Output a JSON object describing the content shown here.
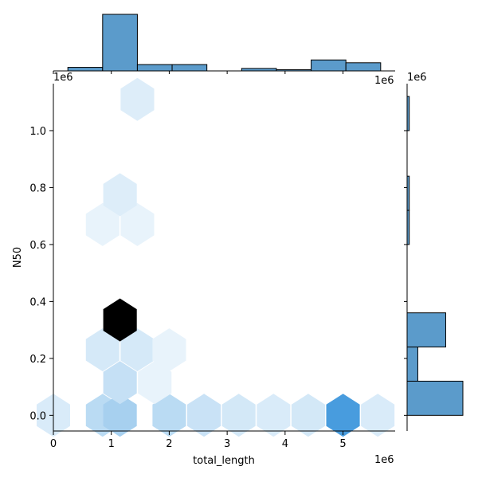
{
  "chart_data": {
    "type": "heatmap",
    "subtype": "jointplot-hexbin",
    "xlabel": "total_length",
    "ylabel": "N50",
    "x_exponent_label": "1e6",
    "y_exponent_label": "1e6",
    "marginal_x_exponent_label": "1e6",
    "marginal_y_exponent_label": "1e6",
    "xlim": [
      0,
      5.9
    ],
    "ylim": [
      -0.055,
      1.165
    ],
    "x_ticks": [
      {
        "value": 0,
        "label": "0"
      },
      {
        "value": 1,
        "label": "1"
      },
      {
        "value": 2,
        "label": "2"
      },
      {
        "value": 3,
        "label": "3"
      },
      {
        "value": 4,
        "label": "4"
      },
      {
        "value": 5,
        "label": "5"
      }
    ],
    "y_ticks": [
      {
        "value": 0.0,
        "label": "0.0"
      },
      {
        "value": 0.2,
        "label": "0.2"
      },
      {
        "value": 0.4,
        "label": "0.4"
      },
      {
        "value": 0.6,
        "label": "0.6"
      },
      {
        "value": 0.8,
        "label": "0.8"
      },
      {
        "value": 1.0,
        "label": "1.0"
      }
    ],
    "hexbins": [
      {
        "x": 0.0,
        "y": 0.0,
        "level": 0.12
      },
      {
        "x": 0.85,
        "y": 0.0,
        "level": 0.27
      },
      {
        "x": 1.15,
        "y": 0.0,
        "level": 0.36
      },
      {
        "x": 2.0,
        "y": 0.0,
        "level": 0.27
      },
      {
        "x": 2.6,
        "y": 0.0,
        "level": 0.2
      },
      {
        "x": 3.2,
        "y": 0.0,
        "level": 0.15
      },
      {
        "x": 3.8,
        "y": 0.0,
        "level": 0.12
      },
      {
        "x": 4.4,
        "y": 0.0,
        "level": 0.15
      },
      {
        "x": 5.0,
        "y": 0.0,
        "level": 0.7
      },
      {
        "x": 5.6,
        "y": 0.0,
        "level": 0.12
      },
      {
        "x": 1.15,
        "y": 0.115,
        "level": 0.22
      },
      {
        "x": 1.75,
        "y": 0.115,
        "level": 0.05
      },
      {
        "x": 0.85,
        "y": 0.23,
        "level": 0.14
      },
      {
        "x": 1.45,
        "y": 0.23,
        "level": 0.14
      },
      {
        "x": 2.0,
        "y": 0.23,
        "level": 0.05
      },
      {
        "x": 1.15,
        "y": 0.335,
        "level": 1.0
      },
      {
        "x": 0.85,
        "y": 0.67,
        "level": 0.05
      },
      {
        "x": 1.45,
        "y": 0.67,
        "level": 0.05
      },
      {
        "x": 1.15,
        "y": 0.775,
        "level": 0.1
      },
      {
        "x": 1.45,
        "y": 1.11,
        "level": 0.1
      }
    ],
    "marginal_x_bins": [
      {
        "x0": 0.25,
        "x1": 0.85,
        "count": 1
      },
      {
        "x0": 0.85,
        "x1": 1.45,
        "count": 16
      },
      {
        "x0": 1.45,
        "x1": 2.05,
        "count": 1.8
      },
      {
        "x0": 2.05,
        "x1": 2.65,
        "count": 1.8
      },
      {
        "x0": 2.65,
        "x1": 3.25,
        "count": 0
      },
      {
        "x0": 3.25,
        "x1": 3.85,
        "count": 0.7
      },
      {
        "x0": 3.85,
        "x1": 4.45,
        "count": 0.35
      },
      {
        "x0": 4.45,
        "x1": 5.05,
        "count": 3.1
      },
      {
        "x0": 5.05,
        "x1": 5.65,
        "count": 2.3
      }
    ],
    "marginal_y_bins": [
      {
        "y0": 0.0,
        "y1": 0.12,
        "count": 13
      },
      {
        "y0": 0.12,
        "y1": 0.24,
        "count": 2.5
      },
      {
        "y0": 0.24,
        "y1": 0.36,
        "count": 9
      },
      {
        "y0": 0.6,
        "y1": 0.72,
        "count": 0.5
      },
      {
        "y0": 0.72,
        "y1": 0.84,
        "count": 0.5
      },
      {
        "y0": 1.0,
        "y1": 1.12,
        "count": 0.5
      }
    ]
  }
}
